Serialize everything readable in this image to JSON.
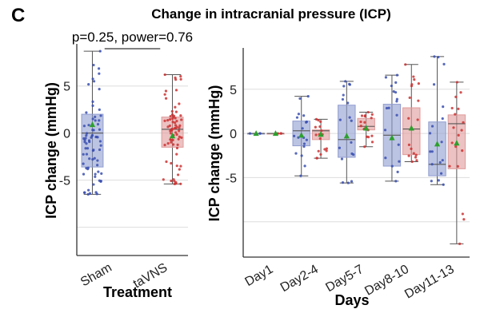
{
  "panel_label": "C",
  "chart_data": [
    {
      "type": "box",
      "title": "Change in intracranial pressure (ICP)",
      "xlabel": "Treatment",
      "ylabel": "ICP change (mmHg)",
      "ylim": [
        -13,
        9.3
      ],
      "yticks": [
        5,
        0,
        -5
      ],
      "ytick_labels": [
        "5",
        "0",
        "-5"
      ],
      "categories": [
        "Sham",
        "taVNS"
      ],
      "annotation": "p=0.25, power=0.76",
      "grid": true,
      "series": [
        {
          "color": "#8f9cd0",
          "point_color": "#3a4fb0",
          "boxes": [
            {
              "category": "Sham",
              "whisker_low": -6.5,
              "q1": -3.6,
              "median": 0.0,
              "q3": 2.0,
              "whisker_high": 8.7,
              "mean": 0.9
            }
          ]
        },
        {
          "color": "#e09a9a",
          "point_color": "#cc3333",
          "boxes": [
            {
              "category": "taVNS",
              "whisker_low": -5.4,
              "q1": -1.5,
              "median": 0.4,
              "q3": 1.7,
              "whisker_high": 6.2,
              "mean": -0.3
            }
          ]
        }
      ]
    },
    {
      "type": "box",
      "xlabel": "Days",
      "ylabel": "ICP change (mmHg)",
      "ylim": [
        -14,
        9.5
      ],
      "yticks": [
        5,
        0,
        -5
      ],
      "ytick_labels": [
        "5",
        "0",
        "-5"
      ],
      "categories": [
        "Day1",
        "Day2-4",
        "Day5-7",
        "Day8-10",
        "Day11-13"
      ],
      "grid": true,
      "series": [
        {
          "color": "#8f9cd0",
          "point_color": "#3a4fb0",
          "boxes": [
            {
              "category": "Day1",
              "whisker_low": 0,
              "q1": 0,
              "median": 0,
              "q3": 0,
              "whisker_high": 0,
              "mean": 0
            },
            {
              "category": "Day2-4",
              "whisker_low": -4.8,
              "q1": -1.4,
              "median": 0.3,
              "q3": 1.4,
              "whisker_high": 4.2,
              "mean": -0.2
            },
            {
              "category": "Day5-7",
              "whisker_low": -5.6,
              "q1": -2.7,
              "median": -0.7,
              "q3": 3.2,
              "whisker_high": 5.9,
              "mean": -0.3
            },
            {
              "category": "Day8-10",
              "whisker_low": -5.4,
              "q1": -3.7,
              "median": -0.2,
              "q3": 3.3,
              "whisker_high": 6.6,
              "mean": -0.5
            },
            {
              "category": "Day11-13",
              "whisker_low": -5.8,
              "q1": -4.8,
              "median": -3.5,
              "q3": 1.3,
              "whisker_high": 8.7,
              "mean": -1.2
            }
          ]
        },
        {
          "color": "#e09a9a",
          "point_color": "#cc3333",
          "boxes": [
            {
              "category": "Day1",
              "whisker_low": 0,
              "q1": 0,
              "median": 0,
              "q3": 0,
              "whisker_high": 0,
              "mean": 0
            },
            {
              "category": "Day2-4",
              "whisker_low": -2.8,
              "q1": -0.7,
              "median": 0.3,
              "q3": 0.4,
              "whisker_high": 1.6,
              "mean": -0.1
            },
            {
              "category": "Day5-7",
              "whisker_low": -1.5,
              "q1": 0.4,
              "median": 0.8,
              "q3": 1.7,
              "whisker_high": 2.4,
              "mean": 0.6
            },
            {
              "category": "Day8-10",
              "whisker_low": -3.2,
              "q1": -2.4,
              "median": 0.5,
              "q3": 2.9,
              "whisker_high": 7.8,
              "mean": 0.6
            },
            {
              "category": "Day11-13",
              "whisker_low": -12.5,
              "q1": -4.0,
              "median": 1.1,
              "q3": 2.1,
              "whisker_high": 5.8,
              "mean": -1.1
            }
          ]
        }
      ]
    }
  ]
}
